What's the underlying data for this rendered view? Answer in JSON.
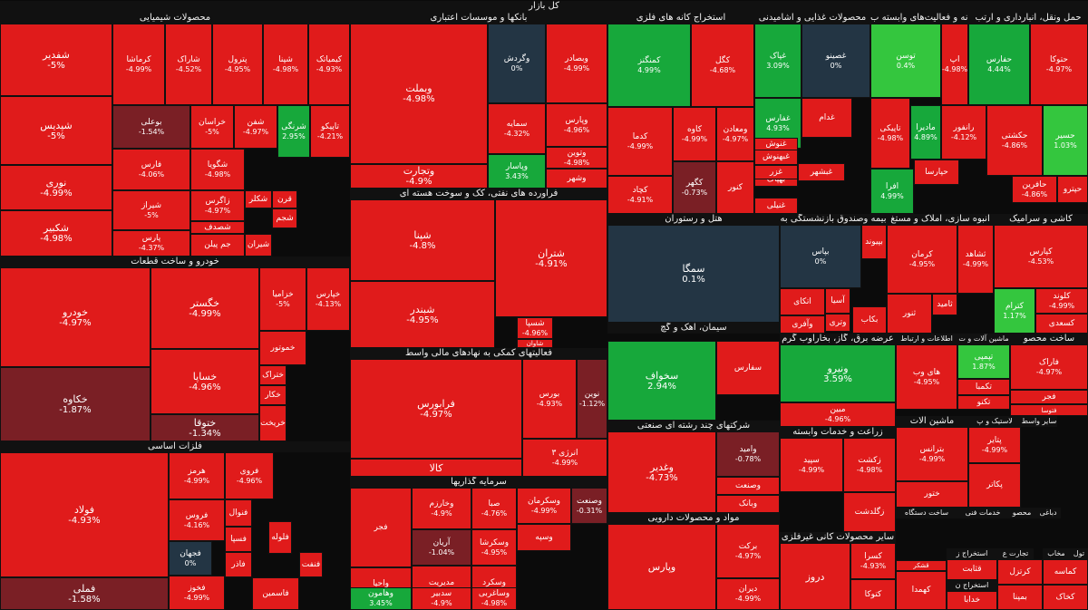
{
  "title": "کل بازار",
  "colors": {
    "neg": "#e01b1b",
    "neg_dark": "#7a1f25",
    "pos": "#17a83b",
    "pos_light": "#34c63e",
    "zero": "#233544",
    "header_bg": "#111111"
  },
  "chart_data": {
    "type": "treemap",
    "unit": "%",
    "sectors": [
      {
        "name": "محصولات شیمیایی"
      },
      {
        "name": "بانکها و موسسات اعتباری"
      },
      {
        "name": "استخراج کانه های فلزی"
      },
      {
        "name": "محصولات غذایی و آشامیدنی"
      },
      {
        "name": "محصولات فلزی"
      },
      {
        "name": "رایانه و فعالیت‌های وابسته ب"
      },
      {
        "name": "حمل ونقل، انبارداری و ارتب"
      },
      {
        "name": "فراورده های نفتی، کک و سوخت هسته ای"
      },
      {
        "name": "هتل و رستوران"
      },
      {
        "name": "بیمه وصندوق بازنشستگی به"
      },
      {
        "name": "انبوه سازی، املاک و مستغ"
      },
      {
        "name": "کاشی و سرامیک"
      },
      {
        "name": "خودرو و ساخت قطعات"
      },
      {
        "name": "فعالیتهای کمکی به نهادهای مالی واسط"
      },
      {
        "name": "سیمان، آهک و گچ"
      },
      {
        "name": "عرضه برق، گاز، بخاراوب گرم"
      },
      {
        "name": "اطلاعات و ارتباط"
      },
      {
        "name": "ماشین آلات و ت"
      },
      {
        "name": "ساخت محصو"
      },
      {
        "name": "شرکتهای چند رشته ای صنعتی"
      },
      {
        "name": "ماشین آلات"
      },
      {
        "name": "لاستیک و پ"
      },
      {
        "name": "سایر واسط"
      },
      {
        "name": "زراعت و خدمات وابسته"
      },
      {
        "name": "فلزات اساسی"
      },
      {
        "name": "سرمایه گذاریها"
      },
      {
        "name": "مواد و محصولات دارویی"
      },
      {
        "name": "ساخت دستگاه"
      },
      {
        "name": "خدمات فنی"
      },
      {
        "name": "محصو"
      },
      {
        "name": "دباغی"
      },
      {
        "name": "سایر محصولات کانی غیرفلزی"
      },
      {
        "name": "قند و شکر"
      },
      {
        "name": "استخراج ز"
      },
      {
        "name": "استخراج ن"
      },
      {
        "name": "تجارت ع"
      },
      {
        "name": "مخاب"
      },
      {
        "name": "تول"
      }
    ],
    "tiles": [
      {
        "symbol": "شفدیر",
        "change": "-5%",
        "value": -5
      },
      {
        "symbol": "کرماشا",
        "change": "-4.99%",
        "value": -4.99
      },
      {
        "symbol": "شاراک",
        "change": "-4.52%",
        "value": -4.52
      },
      {
        "symbol": "پترول",
        "change": "-4.95%",
        "value": -4.95
      },
      {
        "symbol": "شپنا",
        "change": "-4.98%",
        "value": -4.98
      },
      {
        "symbol": "کیمیاتک",
        "change": "-4.93%",
        "value": -4.93
      },
      {
        "symbol": "شپدیس",
        "change": "-5%",
        "value": -5
      },
      {
        "symbol": "بوعلی",
        "change": "-1.54%",
        "value": -1.54
      },
      {
        "symbol": "خراسان",
        "change": "-5%",
        "value": -5
      },
      {
        "symbol": "شفن",
        "change": "-4.97%",
        "value": -4.97
      },
      {
        "symbol": "شرنگی",
        "change": "2.95%",
        "value": 2.95
      },
      {
        "symbol": "تاپیکو",
        "change": "-4.21%",
        "value": -4.21
      },
      {
        "symbol": "نوری",
        "change": "-4.99%",
        "value": -4.99
      },
      {
        "symbol": "فارس",
        "change": "-4.06%",
        "value": -4.06
      },
      {
        "symbol": "شگویا",
        "change": "-4.98%",
        "value": -4.98
      },
      {
        "symbol": "شیراز",
        "change": "-5%",
        "value": -5
      },
      {
        "symbol": "زاگرس",
        "change": "-4.97%",
        "value": -4.97
      },
      {
        "symbol": "شکلر"
      },
      {
        "symbol": "قرن"
      },
      {
        "symbol": "شصدف"
      },
      {
        "symbol": "شجم"
      },
      {
        "symbol": "شکبیر",
        "change": "-4.98%",
        "value": -4.98
      },
      {
        "symbol": "پارس",
        "change": "-4.37%",
        "value": -4.37
      },
      {
        "symbol": "جم پیلن"
      },
      {
        "symbol": "شیران"
      },
      {
        "symbol": "وبملت",
        "change": "-4.98%",
        "value": -4.98
      },
      {
        "symbol": "وگردش",
        "change": "0%",
        "value": 0
      },
      {
        "symbol": "وبصادر",
        "change": "-4.99%",
        "value": -4.99
      },
      {
        "symbol": "سمایه",
        "change": "-4.32%",
        "value": -4.32
      },
      {
        "symbol": "وپارس",
        "change": "-4.96%",
        "value": -4.96
      },
      {
        "symbol": "وتجارت",
        "change": "-4.9%",
        "value": -4.9
      },
      {
        "symbol": "وپاسار",
        "change": "3.43%",
        "value": 3.43
      },
      {
        "symbol": "وتوین",
        "change": "-4.98%",
        "value": -4.98
      },
      {
        "symbol": "وشهر"
      },
      {
        "symbol": "کمنگنز",
        "change": "4.99%",
        "value": 4.99
      },
      {
        "symbol": "کگل",
        "change": "-4.68%",
        "value": -4.68
      },
      {
        "symbol": "کدما",
        "change": "-4.99%",
        "value": -4.99
      },
      {
        "symbol": "کاوه",
        "change": "-4.99%",
        "value": -4.99
      },
      {
        "symbol": "ومعادن",
        "change": "-4.97%",
        "value": -4.97
      },
      {
        "symbol": "کچاد",
        "change": "-4.91%",
        "value": -4.91
      },
      {
        "symbol": "کگهر",
        "change": "-0.73%",
        "value": -0.73
      },
      {
        "symbol": "کنور"
      },
      {
        "symbol": "غگیلا"
      },
      {
        "symbol": "غپاک",
        "change": "3.09%",
        "value": 3.09
      },
      {
        "symbol": "غصینو",
        "change": "0%",
        "value": 0
      },
      {
        "symbol": "غدام"
      },
      {
        "symbol": "غفارس",
        "change": "4.93%",
        "value": 4.93
      },
      {
        "symbol": "غبهنوش"
      },
      {
        "symbol": "غنوش"
      },
      {
        "symbol": "غنیلی"
      },
      {
        "symbol": "بهپاک"
      },
      {
        "symbol": "غبشهر"
      },
      {
        "symbol": "غزر"
      },
      {
        "symbol": "توسن",
        "change": "0.4%",
        "value": 0.4
      },
      {
        "symbol": "اپ",
        "change": "-4.98%",
        "value": -4.98
      },
      {
        "symbol": "حفارس",
        "change": "4.44%",
        "value": 4.44
      },
      {
        "symbol": "حتوکا",
        "change": "-4.97%",
        "value": -4.97
      },
      {
        "symbol": "تاپیکی",
        "change": "-4.98%",
        "value": -4.98
      },
      {
        "symbol": "مادیرا",
        "change": "4.89%",
        "value": 4.89
      },
      {
        "symbol": "رانفور",
        "change": "-4.12%",
        "value": -4.12
      },
      {
        "symbol": "حکشتی",
        "change": "-4.86%",
        "value": -4.86
      },
      {
        "symbol": "حسیر",
        "change": "1.03%",
        "value": 1.03
      },
      {
        "symbol": "افرا",
        "change": "4.99%",
        "value": 4.99
      },
      {
        "symbol": "حافرین",
        "change": "-4.86%",
        "value": -4.86
      },
      {
        "symbol": "حپارسا"
      },
      {
        "symbol": "حپترو"
      },
      {
        "symbol": "شپنا",
        "change": "-4.8%",
        "value": -4.8
      },
      {
        "symbol": "شتران",
        "change": "-4.91%",
        "value": -4.91
      },
      {
        "symbol": "شبندر",
        "change": "-4.95%",
        "value": -4.95
      },
      {
        "symbol": "شسپا",
        "change": "-4.96%",
        "value": -4.96
      },
      {
        "symbol": "شاوان"
      },
      {
        "symbol": "سمگا",
        "change": "0.1%",
        "value": 0.1
      },
      {
        "symbol": "بپاس",
        "change": "0%",
        "value": 0
      },
      {
        "symbol": "بپیوند"
      },
      {
        "symbol": "اتکای"
      },
      {
        "symbol": "وآفری"
      },
      {
        "symbol": "آسیا"
      },
      {
        "symbol": "وتری"
      },
      {
        "symbol": "بکاب"
      },
      {
        "symbol": "کرمان",
        "change": "-4.95%",
        "value": -4.95
      },
      {
        "symbol": "ثشاهد",
        "change": "-4.99%",
        "value": -4.99
      },
      {
        "symbol": "ثنور"
      },
      {
        "symbol": "ثامید"
      },
      {
        "symbol": "کپارس",
        "change": "-4.53%",
        "value": -4.53
      },
      {
        "symbol": "کترام",
        "change": "1.17%",
        "value": 1.17
      },
      {
        "symbol": "کلوند",
        "change": "-4.99%",
        "value": -4.99
      },
      {
        "symbol": "کسعدی"
      },
      {
        "symbol": "خودرو",
        "change": "-4.97%",
        "value": -4.97
      },
      {
        "symbol": "خگستر",
        "change": "-4.99%",
        "value": -4.99
      },
      {
        "symbol": "خزامیا",
        "change": "-5%",
        "value": -5
      },
      {
        "symbol": "خپارس",
        "change": "-4.13%",
        "value": -4.13
      },
      {
        "symbol": "خساپا",
        "change": "-4.96%",
        "value": -4.96
      },
      {
        "symbol": "خکاوه",
        "change": "-1.87%",
        "value": -1.87
      },
      {
        "symbol": "ختوقا",
        "change": "-1.34%",
        "value": -1.34
      },
      {
        "symbol": "خموتور"
      },
      {
        "symbol": "ختراک"
      },
      {
        "symbol": "خکار"
      },
      {
        "symbol": "خریخت"
      },
      {
        "symbol": "فرابورس",
        "change": "-4.97%",
        "value": -4.97
      },
      {
        "symbol": "بورس",
        "change": "-4.93%",
        "value": -4.93
      },
      {
        "symbol": "نوین",
        "change": "-1.12%",
        "value": -1.12
      },
      {
        "symbol": "کالا",
        "change": "-4.98%",
        "value": -4.98
      },
      {
        "symbol": "انرژی ۳",
        "change": "-4.99%",
        "value": -4.99
      },
      {
        "symbol": "سخواف",
        "change": "2.94%",
        "value": 2.94
      },
      {
        "symbol": "سفارس"
      },
      {
        "symbol": "ونیرو",
        "change": "3.59%",
        "value": 3.59
      },
      {
        "symbol": "مبین",
        "change": "-4.96%",
        "value": -4.96
      },
      {
        "symbol": "های وب",
        "change": "-4.95%",
        "value": -4.95
      },
      {
        "symbol": "تپمپی",
        "change": "1.87%",
        "value": 1.87
      },
      {
        "symbol": "تکمبا"
      },
      {
        "symbol": "تکنو"
      },
      {
        "symbol": "فاراک",
        "change": "-4.97%",
        "value": -4.97
      },
      {
        "symbol": "فجر"
      },
      {
        "symbol": "فتوسا"
      },
      {
        "symbol": "وغدیر",
        "change": "-4.73%",
        "value": -4.73
      },
      {
        "symbol": "وامید",
        "change": "-0.78%",
        "value": -0.78
      },
      {
        "symbol": "وصنعت"
      },
      {
        "symbol": "وبانک"
      },
      {
        "symbol": "پتایر",
        "change": "-4.99%",
        "value": -4.99
      },
      {
        "symbol": "بترانس",
        "change": "-4.99%",
        "value": -4.99
      },
      {
        "symbol": "ختور"
      },
      {
        "symbol": "پکاتر"
      },
      {
        "symbol": "سپید",
        "change": "-4.99%",
        "value": -4.99
      },
      {
        "symbol": "زکشت",
        "change": "-4.98%",
        "value": -4.98
      },
      {
        "symbol": "زگلدشت"
      },
      {
        "symbol": "فولاد",
        "change": "-4.93%",
        "value": -4.93
      },
      {
        "symbol": "هرمز",
        "change": "-4.99%",
        "value": -4.99
      },
      {
        "symbol": "فروی",
        "change": "-4.96%",
        "value": -4.96
      },
      {
        "symbol": "فروس",
        "change": "-4.16%",
        "value": -4.16
      },
      {
        "symbol": "فجهان",
        "change": "0%",
        "value": 0
      },
      {
        "symbol": "فخوز",
        "change": "-4.99%",
        "value": -4.99
      },
      {
        "symbol": "فملی",
        "change": "-1.58%",
        "value": -1.58
      },
      {
        "symbol": "فنوال"
      },
      {
        "symbol": "فسپا"
      },
      {
        "symbol": "فاذر"
      },
      {
        "symbol": "فلوله"
      },
      {
        "symbol": "فاسمین"
      },
      {
        "symbol": "فنفت"
      },
      {
        "symbol": "فجر"
      },
      {
        "symbol": "وخارزم",
        "change": "-4.9%",
        "value": -4.9
      },
      {
        "symbol": "صبا",
        "change": "-4.76%",
        "value": -4.76
      },
      {
        "symbol": "آریان",
        "change": "-1.04%",
        "value": -1.04
      },
      {
        "symbol": "وسکرشا",
        "change": "-4.95%",
        "value": -4.95
      },
      {
        "symbol": "واحیا",
        "change": "-4.97%",
        "value": -4.97
      },
      {
        "symbol": "مدیریت",
        "change": "-4.95%",
        "value": -4.95
      },
      {
        "symbol": "وسکرد",
        "change": "-4.65%",
        "value": -4.65
      },
      {
        "symbol": "وهامون",
        "change": "3.45%",
        "value": 3.45
      },
      {
        "symbol": "سدبیر",
        "change": "-4.9%",
        "value": -4.9
      },
      {
        "symbol": "وساغربی",
        "change": "-4.98%",
        "value": -4.98
      },
      {
        "symbol": "وسکرمان",
        "change": "-4.99%",
        "value": -4.99
      },
      {
        "symbol": "وصنعت",
        "change": "-0.31%",
        "value": -0.31
      },
      {
        "symbol": "وسپه"
      },
      {
        "symbol": "وپارس"
      },
      {
        "symbol": "برکت",
        "change": "-4.97%",
        "value": -4.97
      },
      {
        "symbol": "دیران",
        "change": "-4.99%",
        "value": -4.99
      },
      {
        "symbol": "دروز"
      },
      {
        "symbol": "کسرا",
        "change": "-4.93%",
        "value": -4.93
      },
      {
        "symbol": "کتوکا"
      },
      {
        "symbol": "کهمدا"
      },
      {
        "symbol": "قشکر"
      },
      {
        "symbol": "قثابت"
      },
      {
        "symbol": "کرتزل"
      },
      {
        "symbol": "بمپنا"
      },
      {
        "symbol": "کماسه"
      },
      {
        "symbol": "کخاک"
      },
      {
        "symbol": "خدابا"
      },
      {
        "symbol": "اخابر"
      }
    ]
  }
}
